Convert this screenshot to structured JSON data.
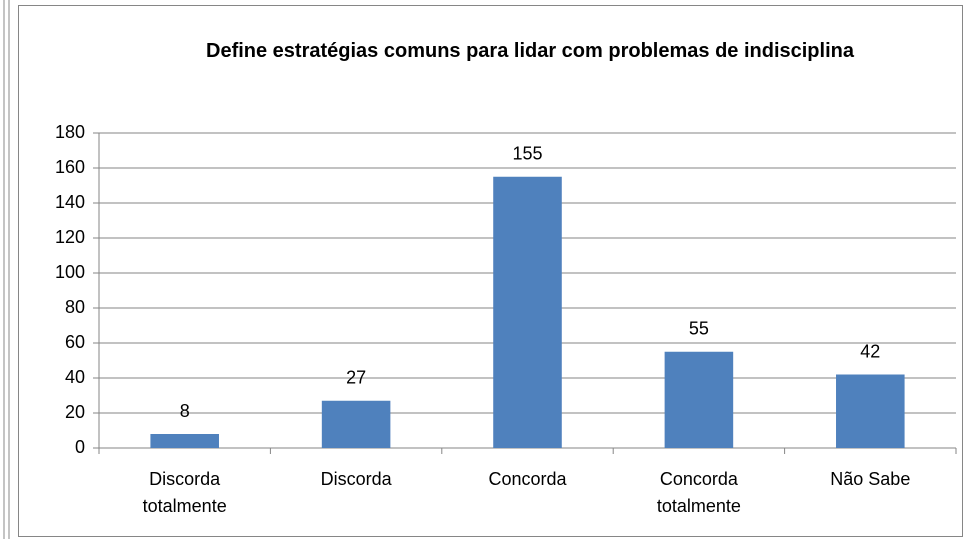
{
  "chart_data": {
    "type": "bar",
    "title": "Define estratégias comuns para lidar com problemas de indisciplina",
    "categories": [
      "Discorda totalmente",
      "Discorda",
      "Concorda",
      "Concorda totalmente",
      "Não Sabe"
    ],
    "values": [
      8,
      27,
      155,
      55,
      42
    ],
    "color": "#4f81bd",
    "ylim": [
      0,
      180
    ],
    "yticks": [
      0,
      20,
      40,
      60,
      80,
      100,
      120,
      140,
      160,
      180
    ],
    "grid": true
  }
}
